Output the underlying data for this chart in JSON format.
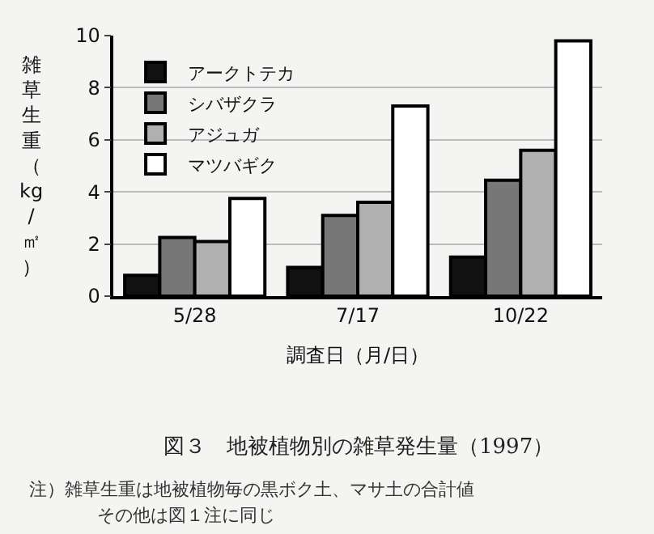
{
  "chart_data": {
    "type": "bar",
    "title": "図３　地被植物別の雑草発生量（1997）",
    "xlabel": "調査日（月/日）",
    "ylabel": "雑草生重（kg/㎡）",
    "categories": [
      "5/28",
      "7/17",
      "10/22"
    ],
    "series": [
      {
        "name": "アークトテカ",
        "color": "#111111",
        "values": [
          0.8,
          1.1,
          1.5
        ]
      },
      {
        "name": "シバザクラ",
        "color": "#777777",
        "values": [
          2.25,
          3.1,
          4.45
        ]
      },
      {
        "name": "アジュガ",
        "color": "#b0b0b0",
        "values": [
          2.1,
          3.6,
          5.6
        ]
      },
      {
        "name": "マツバギク",
        "color": "#ffffff",
        "values": [
          3.75,
          7.3,
          9.8
        ]
      }
    ],
    "ylim": [
      0,
      10
    ],
    "yticks": [
      0,
      2,
      4,
      6,
      8,
      10
    ],
    "grid": "y",
    "legend": "top left",
    "annotations": [
      "注）雑草生重は地被植物毎の黒ボク土、マサ土の合計値",
      "その他は図１注に同じ"
    ]
  }
}
